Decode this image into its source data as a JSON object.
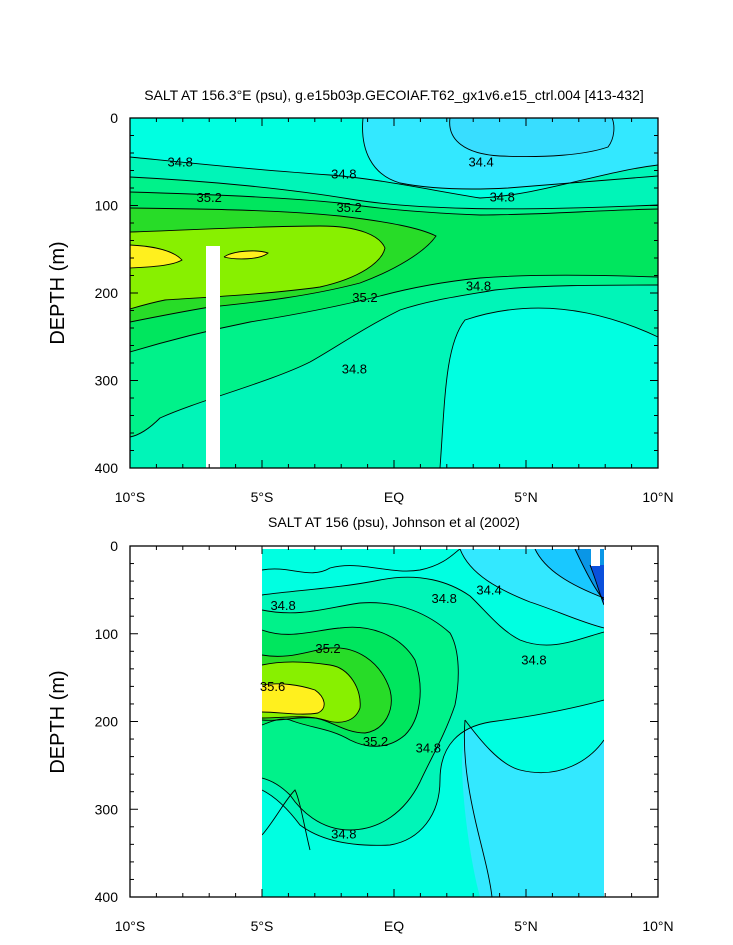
{
  "chart_data": [
    {
      "type": "heatmap",
      "subtype": "filled-contour",
      "title": "SALT AT 156.3°E (psu), g.e15b03p.GECOIAF.T62_gx1v6.e15_ctrl.004 [413-432]",
      "xlabel": "",
      "ylabel": "DEPTH (m)",
      "xlim": [
        -10,
        10
      ],
      "ylim": [
        400,
        0
      ],
      "x_ticks": [
        -10,
        -5,
        0,
        5,
        10
      ],
      "x_tick_labels": [
        "10°S",
        "5°S",
        "EQ",
        "5°N",
        "10°N"
      ],
      "y_ticks": [
        0,
        100,
        200,
        300,
        400
      ],
      "y_tick_labels": [
        "0",
        "100",
        "200",
        "300",
        "400"
      ],
      "data_extent": [
        -10,
        10
      ],
      "contour_levels": [
        34.4,
        34.6,
        34.8,
        35.0,
        35.2,
        35.4,
        35.6
      ],
      "contour_labels": [
        {
          "text": "34.8",
          "x": -8.1,
          "y": 50
        },
        {
          "text": "34.4",
          "x": 3.3,
          "y": 50
        },
        {
          "text": "34.8",
          "x": -1.9,
          "y": 64
        },
        {
          "text": "35.2",
          "x": -7.0,
          "y": 91
        },
        {
          "text": "34.8",
          "x": 4.1,
          "y": 90
        },
        {
          "text": "35.2",
          "x": -1.7,
          "y": 102
        },
        {
          "text": "34.8",
          "x": 3.2,
          "y": 192
        },
        {
          "text": "35.2",
          "x": -1.1,
          "y": 205
        },
        {
          "text": "34.8",
          "x": -1.5,
          "y": 287
        }
      ],
      "masked_region": {
        "x": [
          -7.2,
          -6.7
        ],
        "depth": [
          145,
          400
        ]
      }
    },
    {
      "type": "heatmap",
      "subtype": "filled-contour",
      "title": "SALT AT 156 (psu), Johnson et al (2002)",
      "xlabel": "",
      "ylabel": "DEPTH (m)",
      "xlim": [
        -10,
        10
      ],
      "ylim": [
        400,
        0
      ],
      "x_ticks": [
        -10,
        -5,
        0,
        5,
        10
      ],
      "x_tick_labels": [
        "10°S",
        "5°S",
        "EQ",
        "5°N",
        "10°N"
      ],
      "y_ticks": [
        0,
        100,
        200,
        300,
        400
      ],
      "y_tick_labels": [
        "0",
        "100",
        "200",
        "300",
        "400"
      ],
      "data_extent": [
        -5,
        8
      ],
      "contour_levels": [
        34.2,
        34.4,
        34.6,
        34.8,
        35.0,
        35.2,
        35.4,
        35.6
      ],
      "contour_labels": [
        {
          "text": "34.8",
          "x": -4.2,
          "y": 68
        },
        {
          "text": "34.8",
          "x": 1.9,
          "y": 60
        },
        {
          "text": "34.4",
          "x": 3.6,
          "y": 50
        },
        {
          "text": "35.2",
          "x": -2.5,
          "y": 117
        },
        {
          "text": "34.8",
          "x": 5.3,
          "y": 130
        },
        {
          "text": "35.6",
          "x": -4.6,
          "y": 160
        },
        {
          "text": "35.2",
          "x": -0.7,
          "y": 223
        },
        {
          "text": "34.8",
          "x": 1.3,
          "y": 230
        },
        {
          "text": "34.8",
          "x": -1.9,
          "y": 328
        }
      ]
    }
  ]
}
